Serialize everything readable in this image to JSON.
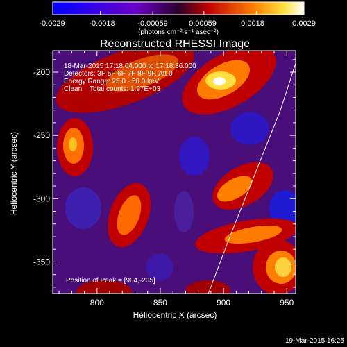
{
  "colorbar": {
    "tick_labels": [
      "-0.0029",
      "-0.0018",
      "-0.00059",
      "0.00059",
      "0.0018",
      "0.0029"
    ],
    "unit_label": "(photons cm⁻² s⁻¹ asec⁻²)"
  },
  "chart_data": {
    "type": "heatmap",
    "title": "Reconstructed RHESSI Image",
    "xlabel": "Heliocentric X (arcsec)",
    "ylabel": "Heliocentric Y (arcsec)",
    "xlim": [
      765,
      957
    ],
    "ylim": [
      -375,
      -183
    ],
    "x_ticks": [
      800,
      850,
      900,
      950
    ],
    "y_ticks": [
      -200,
      -250,
      -300,
      -350
    ],
    "color_range": [
      -0.0029,
      0.0029
    ],
    "annotations": [
      "18-Mar-2015 17:18:04.000 to 17:18:36.000",
      "Detectors: 3F 5F 6F 7F 8F 9F, Att 0",
      "Energy Range: 25.0 - 50.0 keV",
      "Clean    Total counts: 1.97E+03"
    ],
    "peak_label": "Position of Peak = [904,-205]",
    "peak": [
      904,
      -205
    ],
    "limb_points": [
      [
        888,
        -375
      ],
      [
        905,
        -330
      ],
      [
        925,
        -280
      ],
      [
        945,
        -230
      ],
      [
        957,
        -193
      ]
    ]
  },
  "footer": {
    "timestamp": "19-Mar-2015 16:25"
  }
}
